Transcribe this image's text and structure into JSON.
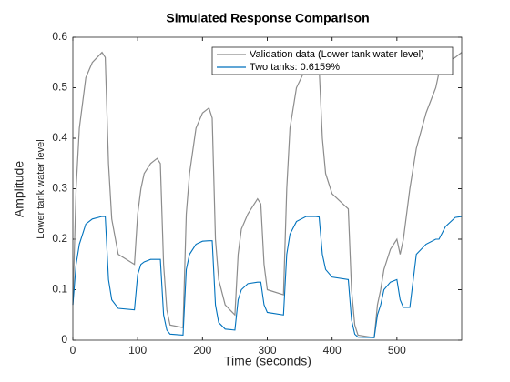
{
  "chart_data": {
    "type": "line",
    "title": "Simulated Response Comparison",
    "xlabel": "Time (seconds)",
    "ylabel": "Amplitude",
    "ylabel2": "Lower tank water level",
    "x": [
      0,
      5,
      10,
      20,
      30,
      45,
      50,
      55,
      60,
      70,
      95,
      100,
      105,
      110,
      120,
      130,
      135,
      140,
      145,
      150,
      170,
      175,
      180,
      190,
      200,
      210,
      215,
      220,
      225,
      235,
      250,
      255,
      260,
      270,
      285,
      290,
      295,
      300,
      325,
      330,
      335,
      345,
      360,
      375,
      380,
      385,
      390,
      400,
      425,
      430,
      435,
      440,
      465,
      470,
      475,
      480,
      490,
      500,
      505,
      510,
      520,
      530,
      545,
      560,
      565,
      575,
      590,
      600
    ],
    "series": [
      {
        "name": "Validation data (Lower tank water level)",
        "color": "#8c8c8c",
        "values": [
          0.07,
          0.3,
          0.42,
          0.52,
          0.55,
          0.57,
          0.56,
          0.35,
          0.24,
          0.17,
          0.15,
          0.25,
          0.3,
          0.33,
          0.35,
          0.36,
          0.35,
          0.15,
          0.06,
          0.03,
          0.025,
          0.25,
          0.33,
          0.42,
          0.45,
          0.46,
          0.44,
          0.2,
          0.12,
          0.07,
          0.05,
          0.17,
          0.22,
          0.25,
          0.28,
          0.27,
          0.15,
          0.1,
          0.09,
          0.3,
          0.42,
          0.5,
          0.54,
          0.56,
          0.54,
          0.4,
          0.33,
          0.29,
          0.26,
          0.1,
          0.03,
          0.01,
          0.005,
          0.07,
          0.1,
          0.14,
          0.18,
          0.2,
          0.17,
          0.2,
          0.3,
          0.38,
          0.45,
          0.5,
          0.53,
          0.55,
          0.56,
          0.57
        ]
      },
      {
        "name": "Two tanks: 0.6159%",
        "color": "#0072bd",
        "values": [
          0.07,
          0.15,
          0.19,
          0.23,
          0.24,
          0.245,
          0.245,
          0.12,
          0.08,
          0.063,
          0.06,
          0.13,
          0.15,
          0.155,
          0.16,
          0.16,
          0.16,
          0.05,
          0.02,
          0.012,
          0.01,
          0.14,
          0.17,
          0.19,
          0.196,
          0.197,
          0.197,
          0.07,
          0.035,
          0.022,
          0.02,
          0.08,
          0.1,
          0.112,
          0.115,
          0.115,
          0.07,
          0.055,
          0.05,
          0.17,
          0.21,
          0.235,
          0.245,
          0.245,
          0.244,
          0.17,
          0.14,
          0.125,
          0.12,
          0.04,
          0.012,
          0.006,
          0.005,
          0.05,
          0.07,
          0.1,
          0.115,
          0.12,
          0.08,
          0.065,
          0.065,
          0.17,
          0.19,
          0.2,
          0.2,
          0.225,
          0.243,
          0.245
        ]
      }
    ],
    "xlim": [
      0,
      600
    ],
    "xticks": [
      0,
      100,
      200,
      300,
      400,
      500
    ],
    "ylim": [
      0,
      0.6
    ],
    "yticks": [
      0,
      0.1,
      0.2,
      0.3,
      0.4,
      0.5,
      0.6
    ],
    "grid": false,
    "legend": "upper right"
  }
}
